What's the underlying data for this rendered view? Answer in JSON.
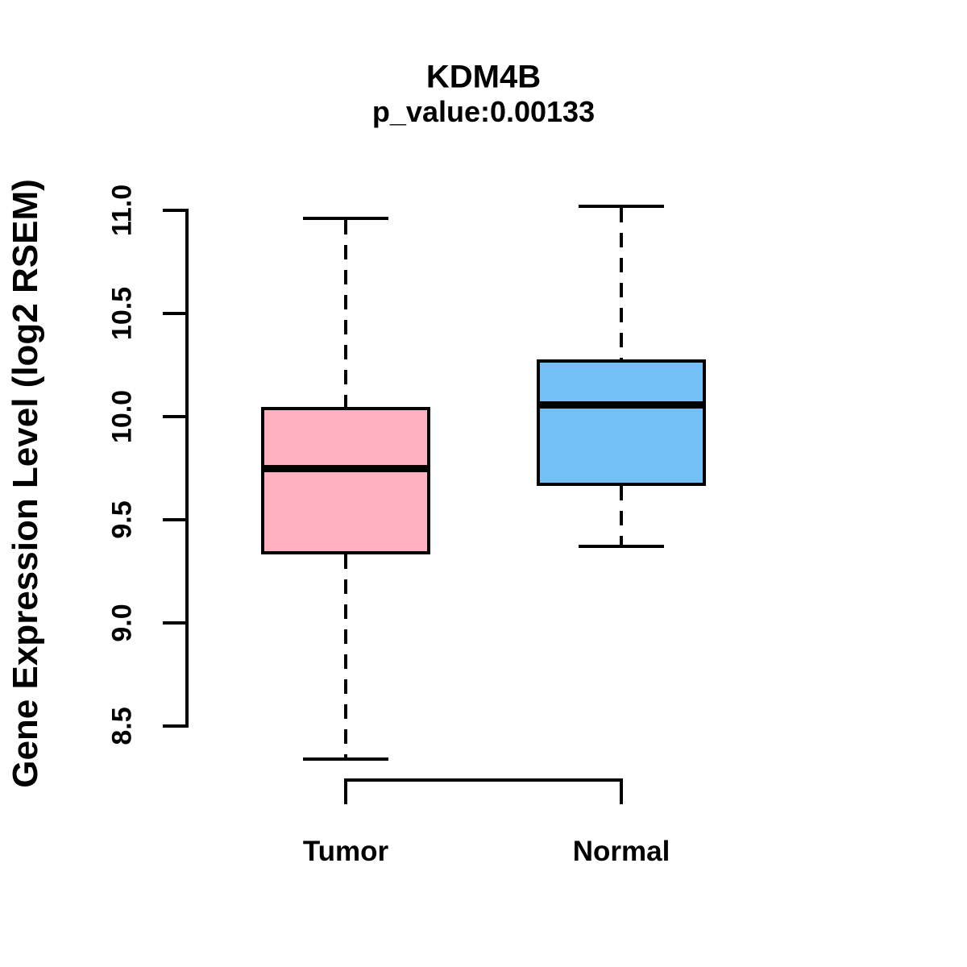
{
  "chart_data": {
    "type": "boxplot",
    "title": "KDM4B",
    "subtitle": "p_value:0.00133",
    "xlabel": "",
    "ylabel": "Gene Expression Level (log2 RSEM)",
    "categories": [
      "Tumor",
      "Normal"
    ],
    "ytick_labels": [
      "8.5",
      "9.0",
      "9.5",
      "10.0",
      "10.5",
      "11.0"
    ],
    "ylim": [
      8.25,
      11.05
    ],
    "grid": false,
    "legend": "none",
    "gene": "KDM4B",
    "p_value": "0.00133",
    "series": [
      {
        "name": "Tumor",
        "color": "#FFB0C1",
        "whisker_low": 8.34,
        "q1": 9.34,
        "median": 9.75,
        "q3": 10.04,
        "whisker_high": 10.96
      },
      {
        "name": "Normal",
        "color": "#73C0F7",
        "whisker_low": 9.37,
        "q1": 9.67,
        "median": 10.06,
        "q3": 10.27,
        "whisker_high": 11.02
      }
    ],
    "stroke_color": "#000000"
  }
}
